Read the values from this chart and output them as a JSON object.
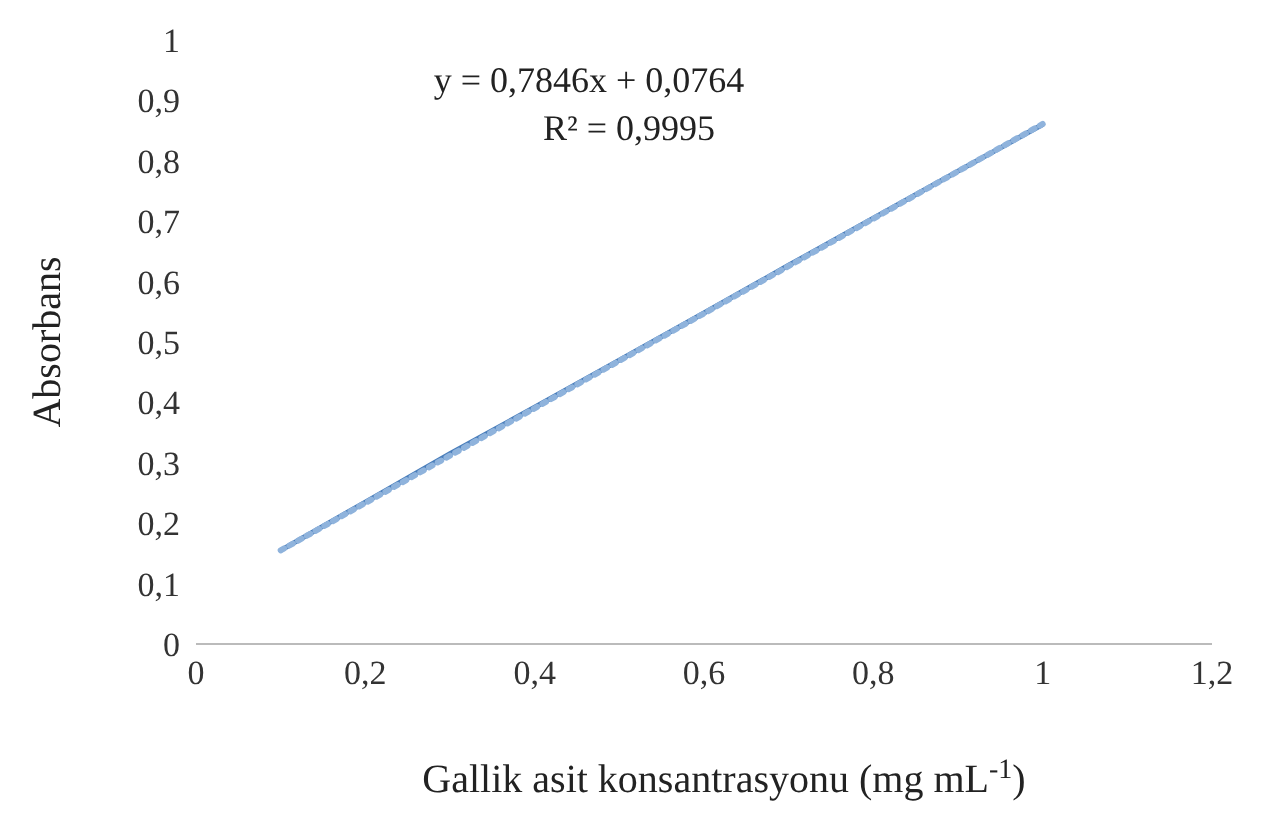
{
  "chart_data": {
    "type": "line",
    "xlabel": "Gallik asit konsantrasyonu (mg mL$^{-1}$)",
    "ylabel": "Absorbans",
    "annotations": [
      "y = 0,7846x + 0,0764",
      "R² = 0,9995"
    ],
    "series": [
      {
        "color": "#4a7ebb",
        "line_style": "solid",
        "x": [
          0.1,
          0.2,
          0.3,
          0.4,
          0.5,
          0.6,
          0.7,
          0.8,
          0.9,
          1
        ],
        "values": [
          0.155,
          0.235,
          0.315,
          0.392,
          0.47,
          0.548,
          0.627,
          0.705,
          0.783,
          0.86
        ]
      },
      {
        "color": "#8fb3dc",
        "line_style": "dotted",
        "x": [
          0.1,
          1
        ],
        "values": [
          0.155,
          0.861
        ]
      }
    ],
    "xlim": [
      0,
      1.2
    ],
    "xticks": [
      {
        "value": 0,
        "label": "0"
      },
      {
        "value": 0.2,
        "label": "0,2"
      },
      {
        "value": 0.4,
        "label": "0,4"
      },
      {
        "value": 0.6,
        "label": "0,6"
      },
      {
        "value": 0.8,
        "label": "0,8"
      },
      {
        "value": 1,
        "label": "1"
      },
      {
        "value": 1.2,
        "label": "1,2"
      }
    ],
    "ylim": [
      0,
      1
    ],
    "yticks": [
      {
        "value": 0,
        "label": "0"
      },
      {
        "value": 0.1,
        "label": "0,1"
      },
      {
        "value": 0.2,
        "label": "0,2"
      },
      {
        "value": 0.3,
        "label": "0,3"
      },
      {
        "value": 0.4,
        "label": "0,4"
      },
      {
        "value": 0.5,
        "label": "0,5"
      },
      {
        "value": 0.6,
        "label": "0,6"
      },
      {
        "value": 0.7,
        "label": "0,7"
      },
      {
        "value": 0.8,
        "label": "0,8"
      },
      {
        "value": 0.9,
        "label": "0,9"
      },
      {
        "value": 1,
        "label": "1"
      }
    ],
    "grid": false,
    "legend": false,
    "marker": "none"
  }
}
